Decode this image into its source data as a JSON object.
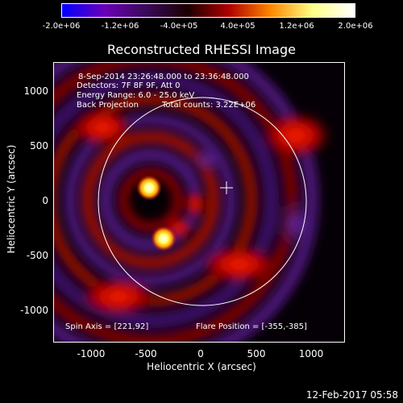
{
  "colorbar": {
    "ticks": [
      "-2.0e+06",
      "-1.2e+06",
      "-4.0e+05",
      "4.0e+05",
      "1.2e+06",
      "2.0e+06"
    ],
    "colors": [
      "#0000ff",
      "#6a00b8",
      "#3a0a5a",
      "#1a0000",
      "#b00000",
      "#ff8800",
      "#ffff88",
      "#ffffff"
    ]
  },
  "title": "Reconstructed RHESSI Image",
  "annotations": {
    "line1": "8-Sep-2014 23:26:48.000 to 23:36:48.000",
    "line2": "Detectors: 7F 8F 9F, Att 0",
    "line3": "Energy Range: 6.0 - 25.0 keV",
    "line4_a": "Back Projection",
    "line4_b": "Total counts: 3.22E+06",
    "spin_axis": "Spin Axis = [221,92]",
    "flare_position": "Flare Position = [-355,-385]"
  },
  "axes": {
    "xlabel": "Heliocentric X (arcsec)",
    "ylabel": "Heliocentric Y (arcsec)",
    "xticks": [
      "-1000",
      "-500",
      "0",
      "500",
      "1000"
    ],
    "yticks": [
      "1000",
      "500",
      "0",
      "-500",
      "-1000"
    ]
  },
  "footer": "12-Feb-2017 05:58"
}
